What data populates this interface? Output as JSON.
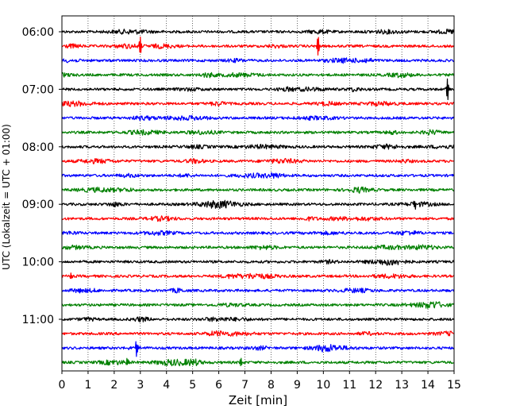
{
  "chart_data": {
    "type": "line",
    "title": "",
    "xlabel": "Zeit  [min]",
    "ylabel": "UTC (Lokalzeit = UTC + 01:00)",
    "xlim": [
      0,
      15
    ],
    "x_ticks": [
      "0",
      "1",
      "2",
      "3",
      "4",
      "5",
      "6",
      "7",
      "8",
      "9",
      "10",
      "11",
      "12",
      "13",
      "14",
      "15"
    ],
    "y_ticks": [
      "06:00",
      "07:00",
      "08:00",
      "09:00",
      "10:00",
      "11:00"
    ],
    "grid": "vertical dotted",
    "trace_colors": [
      "#000000",
      "#ff0000",
      "#0000ff",
      "#008000"
    ],
    "rows_per_hour": 4,
    "trace_start_times": [
      "06:00",
      "06:15",
      "06:30",
      "06:45",
      "07:00",
      "07:15",
      "07:30",
      "07:45",
      "08:00",
      "08:15",
      "08:30",
      "08:45",
      "09:00",
      "09:15",
      "09:30",
      "09:45",
      "10:00",
      "10:15",
      "10:30",
      "10:45",
      "11:00",
      "11:15",
      "11:30",
      "11:45"
    ],
    "events": [
      {
        "row": 1,
        "minute": 3.0,
        "amp": 1.6
      },
      {
        "row": 1,
        "minute": 9.8,
        "amp": 1.6
      },
      {
        "row": 4,
        "minute": 14.75,
        "amp": 1.8
      },
      {
        "row": 22,
        "minute": 2.85,
        "amp": 1.1
      },
      {
        "row": 12,
        "minute": 13.5,
        "amp": 0.6
      },
      {
        "row": 17,
        "minute": 0.35,
        "amp": 0.6
      },
      {
        "row": 23,
        "minute": 6.85,
        "amp": 0.6
      },
      {
        "row": 23,
        "minute": 2.5,
        "amp": 0.5
      }
    ]
  }
}
